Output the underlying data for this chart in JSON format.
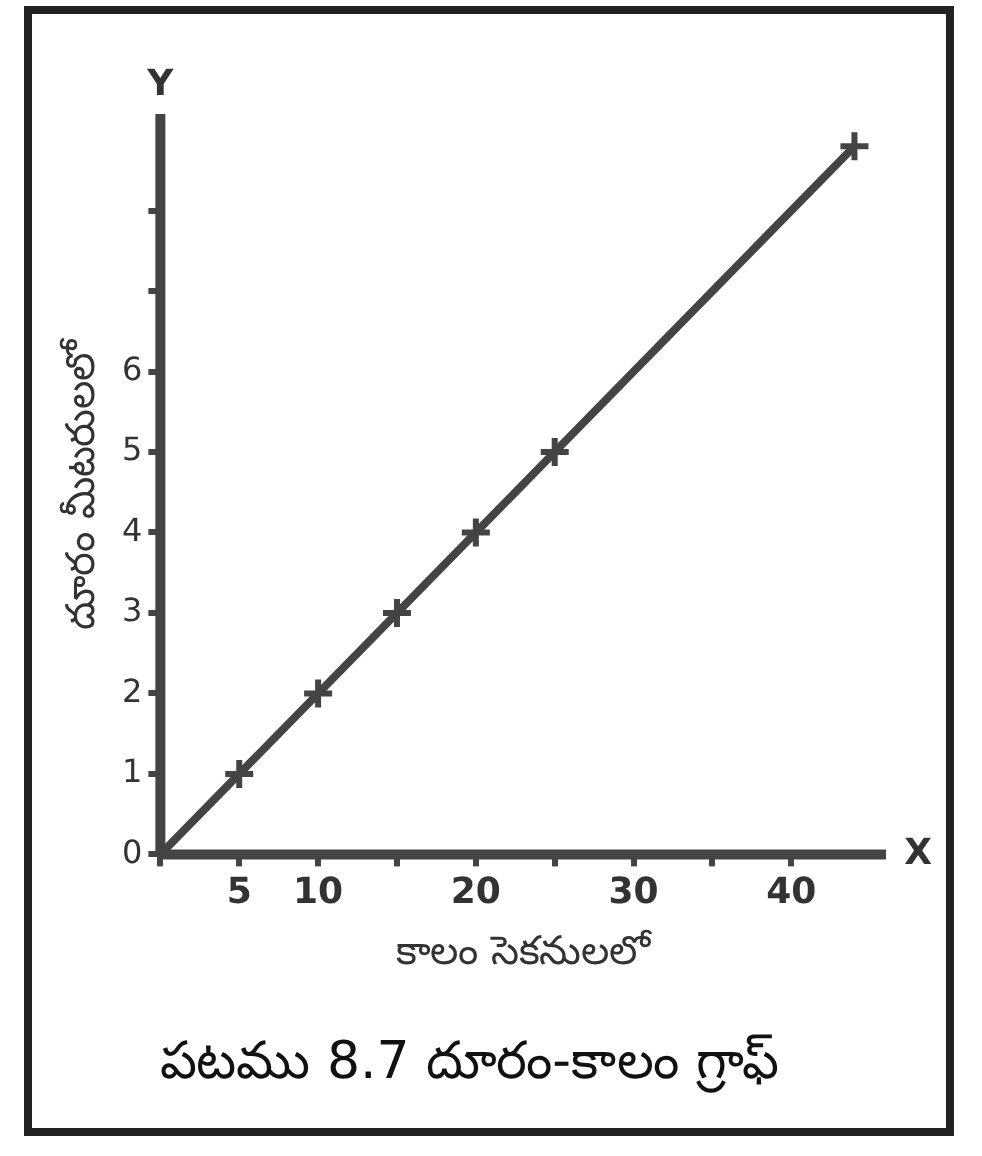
{
  "chart_data": {
    "type": "line",
    "title": "పటము 8.7 దూరం-కాలం గ్రాఫ్",
    "xlabel": "కాలం సెకనులలో",
    "ylabel": "దూరం మీటరులలో",
    "x": [
      0,
      5,
      10,
      15,
      20,
      25,
      44
    ],
    "series": [
      {
        "color": "#444444",
        "values": [
          0,
          1,
          2,
          3,
          4,
          5,
          8.8
        ]
      }
    ],
    "xlim": [
      0,
      46
    ],
    "ylim": [
      0,
      9.2
    ],
    "xticks": [
      {
        "value": 0,
        "label": null
      },
      5,
      10,
      {
        "value": 15,
        "label": null
      },
      20,
      {
        "value": 25,
        "label": null
      },
      30,
      {
        "value": 35,
        "label": null
      },
      40
    ],
    "yticks": [
      0,
      1,
      2,
      3,
      4,
      5,
      6,
      {
        "value": 7,
        "label": null
      },
      {
        "value": 8,
        "label": null
      }
    ],
    "annotations": [
      "X",
      "Y"
    ],
    "grid": false,
    "legend": false,
    "marker": "cross",
    "line_style": "solid"
  }
}
